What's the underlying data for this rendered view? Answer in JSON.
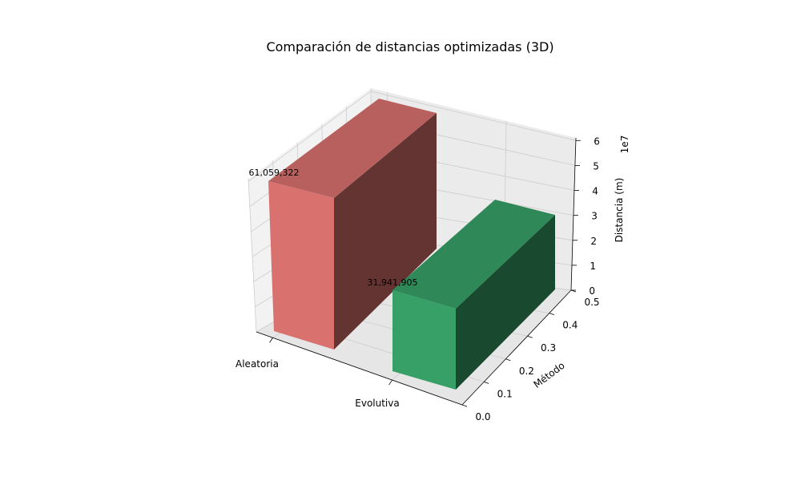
{
  "chart_data": {
    "type": "bar3d",
    "title": "Comparación de distancias optimizadas (3D)",
    "categories": [
      "Aleatoria",
      "Evolutiva"
    ],
    "values": [
      61059322,
      31941905
    ],
    "value_labels": [
      "61,059,322",
      "31,941,905"
    ],
    "colors": [
      "#d9716f",
      "#36a066"
    ],
    "xlabel": "",
    "ylabel": "Método",
    "zlabel": "Distancia (m)",
    "z_offset_text": "1e7",
    "zlim": [
      0,
      61059322
    ],
    "z_ticks": [
      0,
      1,
      2,
      3,
      4,
      5,
      6
    ],
    "y_ticks": [
      "0.0",
      "0.1",
      "0.2",
      "0.3",
      "0.4",
      "0.5"
    ],
    "ylim": [
      0,
      0.5
    ],
    "grid": true
  }
}
